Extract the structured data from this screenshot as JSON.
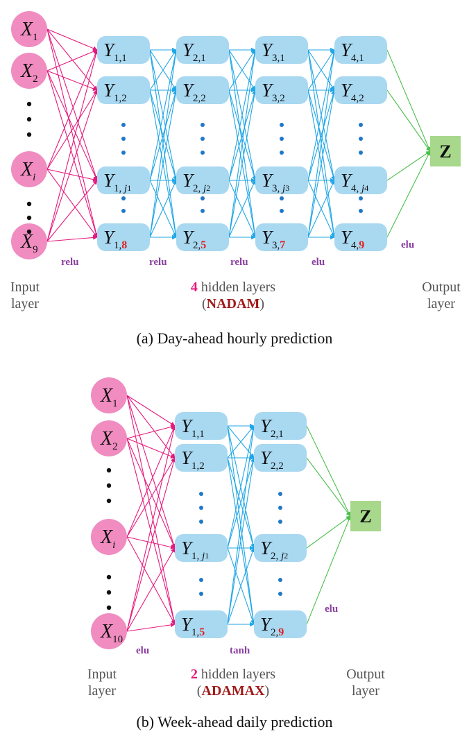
{
  "panel_a": {
    "inputs": [
      {
        "letter": "X",
        "sub": "1",
        "italic_sub": false
      },
      {
        "letter": "X",
        "sub": "2",
        "italic_sub": false
      },
      {
        "letter": "X",
        "sub": "i",
        "italic_sub": true
      },
      {
        "letter": "X",
        "sub": "9",
        "italic_sub": false
      }
    ],
    "layers": [
      {
        "n": "1",
        "count": "8",
        "j": "j1"
      },
      {
        "n": "2",
        "count": "5",
        "j": "j2"
      },
      {
        "n": "3",
        "count": "7",
        "j": "j3"
      },
      {
        "n": "4",
        "count": "9",
        "j": "j4"
      }
    ],
    "activations": [
      "relu",
      "relu",
      "relu",
      "elu",
      "elu"
    ],
    "output_label": "Z",
    "input_layer_line1": "Input",
    "input_layer_line2": "layer",
    "output_layer_line1": "Output",
    "output_layer_line2": "layer",
    "hidden_count": "4",
    "hidden_text": " hidden layers",
    "optimizer_open": "(",
    "optimizer": "NADAM",
    "optimizer_close": ")",
    "caption": "(a)  Day-ahead hourly prediction"
  },
  "panel_b": {
    "inputs": [
      {
        "letter": "X",
        "sub": "1",
        "italic_sub": false
      },
      {
        "letter": "X",
        "sub": "2",
        "italic_sub": false
      },
      {
        "letter": "X",
        "sub": "i",
        "italic_sub": true
      },
      {
        "letter": "X",
        "sub": "10",
        "italic_sub": false
      }
    ],
    "layers": [
      {
        "n": "1",
        "count": "5",
        "j": "j1"
      },
      {
        "n": "2",
        "count": "9",
        "j": "j2"
      }
    ],
    "activations": [
      "elu",
      "tanh",
      "elu"
    ],
    "output_label": "Z",
    "input_layer_line1": "Input",
    "input_layer_line2": "layer",
    "output_layer_line1": "Output",
    "output_layer_line2": "layer",
    "hidden_count": "2",
    "hidden_text": " hidden layers",
    "optimizer_open": "(",
    "optimizer": "ADAMAX",
    "optimizer_close": ")",
    "caption": "(b)  Week-ahead daily prediction"
  },
  "colors": {
    "input_node": "#f08cc0",
    "hidden_node": "#a9d8f1",
    "output_node": "#a8d88c",
    "input_edges": "#e6197d",
    "hidden_edges": "#1fa6e6",
    "output_edges": "#4cc04c",
    "dots_blue": "#1f78c8",
    "dots_black": "#111111",
    "activation_text": "#8a3fa0",
    "highlight_red": "#e02020"
  }
}
